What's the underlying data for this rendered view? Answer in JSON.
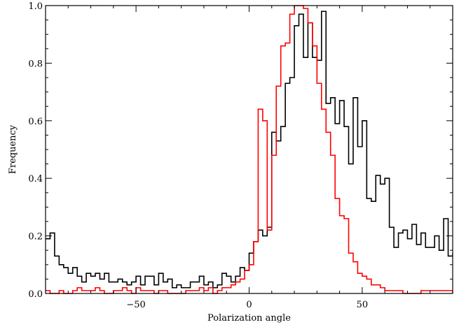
{
  "chart_data": {
    "type": "line",
    "title": "",
    "xlabel": "Polarization angle",
    "ylabel": "Frequency",
    "xlim": [
      -90,
      90
    ],
    "ylim": [
      0,
      1
    ],
    "grid": false,
    "xticks": [
      -50,
      0,
      50
    ],
    "xtick_labels": [
      "−50",
      "0",
      "50"
    ],
    "yticks": [
      0.0,
      0.2,
      0.4,
      0.6,
      0.8,
      1.0
    ],
    "ytick_labels": [
      "0.0",
      "0.2",
      "0.4",
      "0.6",
      "0.8",
      "1.0"
    ],
    "x_edges": [
      -90,
      -88,
      -86,
      -84,
      -82,
      -80,
      -78,
      -76,
      -74,
      -72,
      -70,
      -68,
      -66,
      -64,
      -62,
      -60,
      -58,
      -56,
      -54,
      -52,
      -50,
      -48,
      -46,
      -44,
      -42,
      -40,
      -38,
      -36,
      -34,
      -32,
      -30,
      -28,
      -26,
      -24,
      -22,
      -20,
      -18,
      -16,
      -14,
      -12,
      -10,
      -8,
      -6,
      -4,
      -2,
      0,
      2,
      4,
      6,
      8,
      10,
      12,
      14,
      16,
      18,
      20,
      22,
      24,
      26,
      28,
      30,
      32,
      34,
      36,
      38,
      40,
      42,
      44,
      46,
      48,
      50,
      52,
      54,
      56,
      58,
      60,
      62,
      64,
      66,
      68,
      70,
      72,
      74,
      76,
      78,
      80,
      82,
      84,
      86,
      88,
      90
    ],
    "series": [
      {
        "color": "#000000",
        "values": [
          0.19,
          0.21,
          0.13,
          0.1,
          0.09,
          0.07,
          0.09,
          0.06,
          0.04,
          0.07,
          0.06,
          0.07,
          0.05,
          0.07,
          0.04,
          0.04,
          0.05,
          0.04,
          0.03,
          0.04,
          0.06,
          0.03,
          0.06,
          0.06,
          0.03,
          0.07,
          0.04,
          0.05,
          0.02,
          0.03,
          0.02,
          0.02,
          0.04,
          0.04,
          0.06,
          0.03,
          0.04,
          0.02,
          0.03,
          0.07,
          0.06,
          0.04,
          0.06,
          0.09,
          0.08,
          0.14,
          0.18,
          0.22,
          0.2,
          0.23,
          0.56,
          0.53,
          0.58,
          0.73,
          0.75,
          0.93,
          0.97,
          0.82,
          0.94,
          0.82,
          0.81,
          0.98,
          0.66,
          0.68,
          0.59,
          0.67,
          0.58,
          0.45,
          0.68,
          0.51,
          0.6,
          0.33,
          0.32,
          0.41,
          0.38,
          0.4,
          0.23,
          0.16,
          0.21,
          0.22,
          0.19,
          0.24,
          0.17,
          0.21,
          0.16,
          0.16,
          0.2,
          0.15,
          0.26,
          0.13,
          0.14
        ]
      },
      {
        "color": "#ff0000",
        "values": [
          0.01,
          0.0,
          0.0,
          0.01,
          0.0,
          0.0,
          0.01,
          0.02,
          0.01,
          0.01,
          0.01,
          0.02,
          0.01,
          0.0,
          0.0,
          0.01,
          0.01,
          0.02,
          0.01,
          0.0,
          0.02,
          0.01,
          0.01,
          0.01,
          0.0,
          0.01,
          0.01,
          0.0,
          0.0,
          0.0,
          0.0,
          0.01,
          0.01,
          0.01,
          0.02,
          0.01,
          0.02,
          0.0,
          0.01,
          0.02,
          0.02,
          0.03,
          0.04,
          0.05,
          0.08,
          0.1,
          0.18,
          0.64,
          0.6,
          0.22,
          0.48,
          0.72,
          0.86,
          0.87,
          0.97,
          1.0,
          1.01,
          0.99,
          0.94,
          0.86,
          0.73,
          0.64,
          0.56,
          0.48,
          0.33,
          0.27,
          0.26,
          0.14,
          0.11,
          0.07,
          0.06,
          0.05,
          0.03,
          0.03,
          0.02,
          0.01,
          0.01,
          0.01,
          0.01,
          0.0,
          0.0,
          0.0,
          0.0,
          0.01,
          0.01,
          0.01,
          0.01,
          0.01,
          0.01,
          0.01,
          0.0
        ]
      }
    ]
  }
}
